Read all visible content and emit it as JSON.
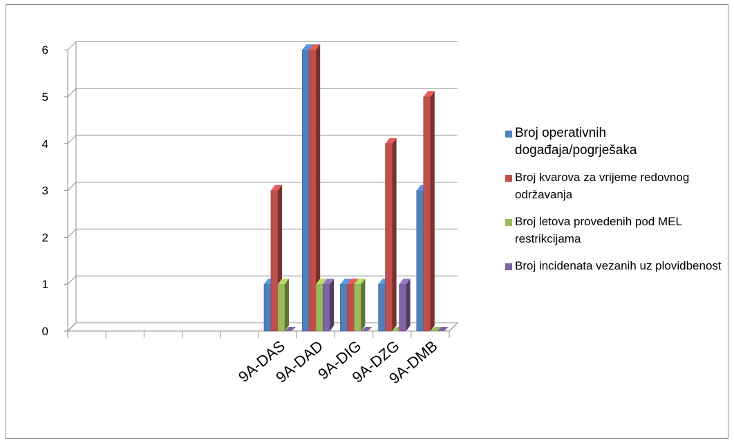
{
  "chart_data": {
    "type": "bar",
    "style": "3d-clustered-column",
    "categories": [
      "",
      "",
      "",
      "",
      "",
      "9A-DAS",
      "9A-DAD",
      "9A-DIG",
      "9A-DZG",
      "9A-DMB"
    ],
    "series": [
      {
        "name": "Broj operativnih događaja/pogrješaka",
        "color": "#4f81bd",
        "values": [
          null,
          null,
          null,
          null,
          null,
          1,
          6,
          1,
          1,
          3
        ]
      },
      {
        "name": "Broj kvarova  za vrijeme redovnog održavanja",
        "color": "#c0504d",
        "values": [
          null,
          null,
          null,
          null,
          null,
          3,
          6,
          1,
          4,
          5
        ]
      },
      {
        "name": "Broj letova provedenih pod MEL restrikcijama",
        "color": "#9bbb59",
        "values": [
          null,
          null,
          null,
          null,
          null,
          1,
          1,
          1,
          0,
          0
        ]
      },
      {
        "name": "Broj incidenata vezanih uz plovidbenost",
        "color": "#8064a2",
        "values": [
          null,
          null,
          null,
          null,
          null,
          0,
          1,
          0,
          1,
          0
        ]
      }
    ],
    "ylim": [
      0,
      6
    ],
    "yticks": [
      "0",
      "1",
      "2",
      "3",
      "4",
      "5",
      "6"
    ],
    "grid": true,
    "legend_position": "right"
  }
}
